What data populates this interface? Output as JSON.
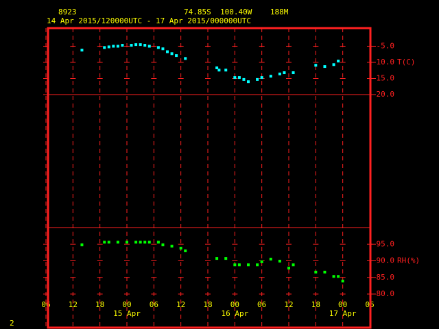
{
  "header": {
    "station": "8923",
    "location": "74.85S  100.40W    188M",
    "period": "14 Apr 2015/120000UTC - 17 Apr 2015/000000UTC"
  },
  "page_number": "2",
  "chart_data": [
    {
      "type": "scatter",
      "ylabel": "T(C)",
      "color": "#00ffff",
      "xlim": [
        0,
        72
      ],
      "ylim": [
        -20,
        0.5
      ],
      "yticks": [
        {
          "value": -5,
          "label": "-5.0"
        },
        {
          "value": -10,
          "label": "-10.0"
        },
        {
          "value": -15,
          "label": "-15.0"
        },
        {
          "value": -20,
          "label": "-20.0"
        }
      ],
      "x": [
        8,
        13,
        14,
        15,
        16,
        17,
        19,
        20,
        21,
        22,
        23,
        25,
        26,
        27,
        28,
        29,
        31,
        38,
        38.5,
        40,
        42,
        43,
        44,
        45,
        47,
        48,
        50,
        52,
        53,
        55,
        60,
        62,
        64,
        65
      ],
      "values": [
        -6.2,
        -5.4,
        -5.2,
        -5.0,
        -5.0,
        -4.7,
        -4.7,
        -4.5,
        -4.5,
        -4.7,
        -5.0,
        -5.4,
        -5.8,
        -6.7,
        -7.3,
        -7.9,
        -8.8,
        -11.7,
        -12.4,
        -12.4,
        -14.7,
        -14.7,
        -15.3,
        -16.0,
        -15.3,
        -14.7,
        -14.3,
        -13.6,
        -13.2,
        -13.2,
        -10.9,
        -11.3,
        -10.7,
        -9.6
      ]
    },
    {
      "type": "scatter",
      "ylabel": "RH(%)",
      "color": "#00ff00",
      "xlim": [
        0,
        72
      ],
      "ylim": [
        80,
        100
      ],
      "yticks": [
        {
          "value": 95,
          "label": "95.0"
        },
        {
          "value": 90,
          "label": "90.0"
        },
        {
          "value": 85,
          "label": "85.0"
        },
        {
          "value": 80,
          "label": "80.0"
        }
      ],
      "xticks": [
        {
          "value": 0,
          "label": "06"
        },
        {
          "value": 6,
          "label": "12"
        },
        {
          "value": 12,
          "label": "18"
        },
        {
          "value": 18,
          "label": "00"
        },
        {
          "value": 24,
          "label": "06"
        },
        {
          "value": 30,
          "label": "12"
        },
        {
          "value": 36,
          "label": "18"
        },
        {
          "value": 42,
          "label": "00"
        },
        {
          "value": 48,
          "label": "06"
        },
        {
          "value": 54,
          "label": "12"
        },
        {
          "value": 60,
          "label": "18"
        },
        {
          "value": 66,
          "label": "00"
        },
        {
          "value": 72,
          "label": "06"
        }
      ],
      "day_labels": [
        {
          "value": 18,
          "label": "15 Apr"
        },
        {
          "value": 42,
          "label": "16 Apr"
        },
        {
          "value": 66,
          "label": "17 Apr"
        }
      ],
      "x": [
        8,
        13,
        14,
        16,
        18,
        20,
        21,
        22,
        23,
        25,
        26,
        28,
        30,
        31,
        38,
        40,
        42,
        43,
        45,
        47,
        48,
        50,
        52,
        54,
        55,
        60,
        62,
        64,
        65,
        66
      ],
      "values": [
        94.8,
        95.6,
        95.6,
        95.6,
        95.6,
        95.6,
        95.6,
        95.6,
        95.6,
        95.6,
        94.8,
        94.4,
        93.8,
        93.0,
        90.7,
        90.7,
        88.8,
        88.8,
        88.8,
        88.8,
        89.7,
        90.5,
        89.9,
        87.8,
        88.8,
        86.6,
        86.6,
        85.3,
        85.3,
        83.9
      ]
    }
  ]
}
